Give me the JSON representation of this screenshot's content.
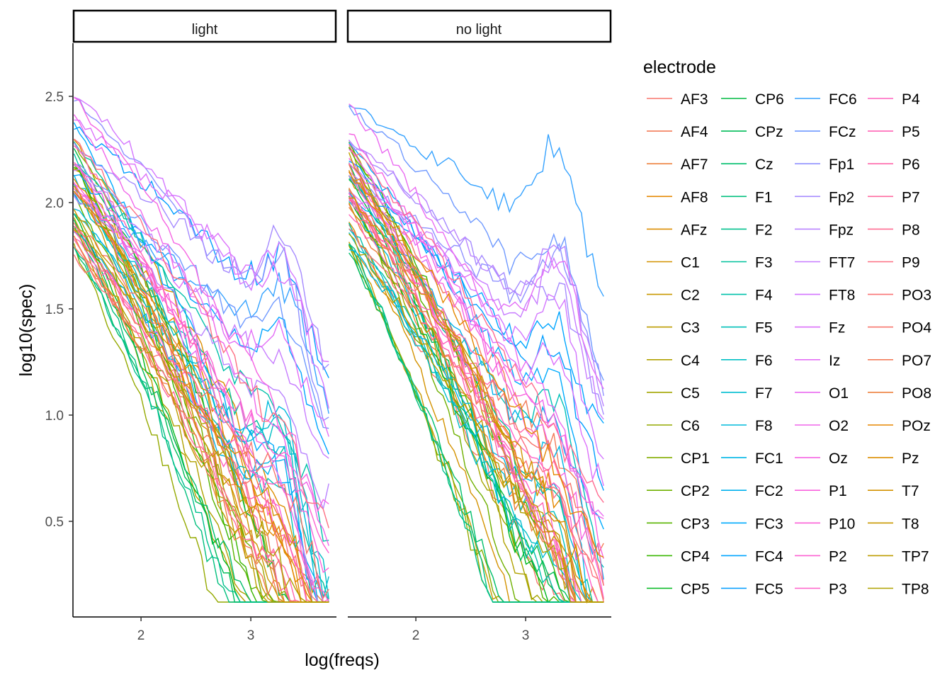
{
  "chart_data": {
    "type": "line",
    "xlabel": "log(freqs)",
    "ylabel": "log10(spec)",
    "xlim": [
      1.38,
      3.78
    ],
    "ylim": [
      0.05,
      2.75
    ],
    "x_ticks": [
      2,
      3
    ],
    "y_ticks": [
      0.5,
      1.0,
      1.5,
      2.0,
      2.5
    ],
    "y_tick_labels": [
      "0.5",
      "1.0",
      "1.5",
      "2.0",
      "2.5"
    ],
    "x_range": [
      1.39,
      3.71
    ],
    "grid": false,
    "legend_placement": "right",
    "legend_columns": 4,
    "legend_title": "electrode",
    "panels": [
      {
        "name": "light",
        "seed": 11
      },
      {
        "name": "no light",
        "seed": 29
      }
    ],
    "electrodes": [
      "AF3",
      "AF4",
      "AF7",
      "AF8",
      "AFz",
      "C1",
      "C2",
      "C3",
      "C4",
      "C5",
      "C6",
      "CP1",
      "CP2",
      "CP3",
      "CP4",
      "CP5",
      "CP6",
      "CPz",
      "Cz",
      "F1",
      "F2",
      "F3",
      "F4",
      "F5",
      "F6",
      "F7",
      "F8",
      "FC1",
      "FC2",
      "FC3",
      "FC4",
      "FC5",
      "FC6",
      "FCz",
      "Fp1",
      "Fp2",
      "Fpz",
      "FT7",
      "FT8",
      "Fz",
      "Iz",
      "O1",
      "O2",
      "Oz",
      "P1",
      "P10",
      "P2",
      "P3",
      "P4",
      "P5",
      "P6",
      "P7",
      "P8",
      "P9",
      "PO3",
      "PO4",
      "PO7",
      "PO8",
      "POz",
      "Pz",
      "T7",
      "T8",
      "TP7",
      "TP8"
    ],
    "colors": [
      "#F8766D",
      "#F37B59",
      "#ED813E",
      "#E58700",
      "#DC8D00",
      "#D39200",
      "#C99800",
      "#BD9D00",
      "#B0A100",
      "#A3A500",
      "#94A900",
      "#83AD00",
      "#6FB000",
      "#58B300",
      "#39B600",
      "#00B81F",
      "#00BA42",
      "#00BC59",
      "#00BE6C",
      "#00BF7D",
      "#00C08D",
      "#00C19C",
      "#00C1AA",
      "#00C0B8",
      "#00BFC4",
      "#00BDD0",
      "#00BADB",
      "#00B6E5",
      "#00B1EE",
      "#00ABFD",
      "#00A5FF",
      "#009DFF",
      "#35A2FF",
      "#6F99FF",
      "#8F91FF",
      "#A58AFF",
      "#B983FF",
      "#C77CFF",
      "#D376FF",
      "#DC71FA",
      "#E36EF6",
      "#EA6AF1",
      "#F066EA",
      "#F564E3",
      "#F962DD",
      "#FB61D7",
      "#FD61D1",
      "#FF61C9",
      "#FF62BF",
      "#FF64B5",
      "#FF66AA",
      "#FF689F",
      "#FF6C91",
      "#FD7083",
      "#FA7476",
      "#F8766D",
      "#F37B59",
      "#ED813E",
      "#E58700",
      "#DC8D00",
      "#D39200",
      "#C99800",
      "#BD9D00",
      "#B0A100"
    ],
    "series_params": [
      {
        "s": 1.9,
        "m": 1.9,
        "b": 0.1,
        "p": 0.35
      },
      {
        "s": 2.1,
        "m": 1.8,
        "b": 0.12,
        "p": 0.4
      }
    ]
  }
}
